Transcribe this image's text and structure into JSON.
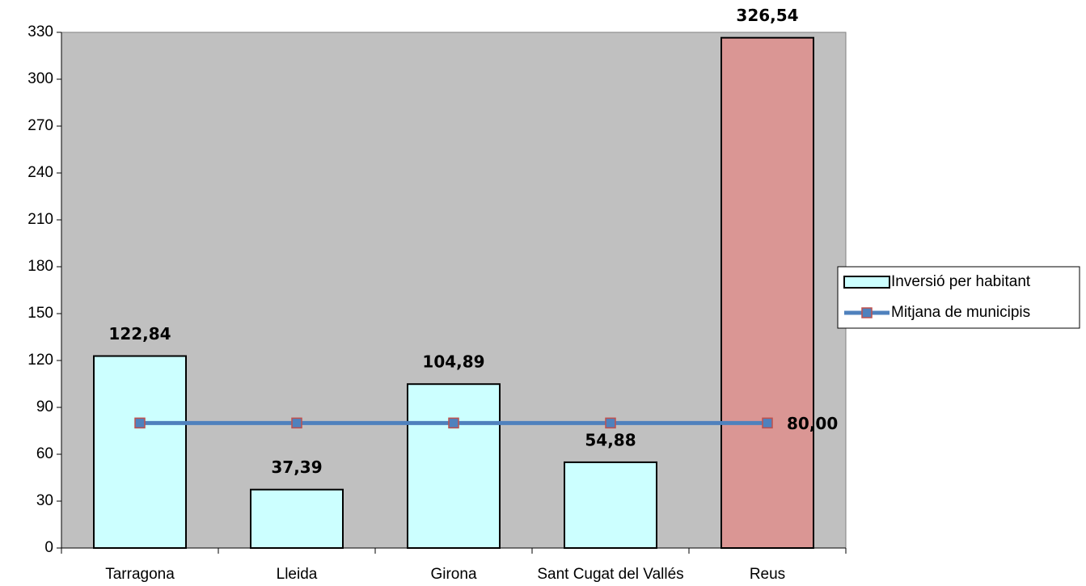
{
  "chart_data": {
    "type": "bar",
    "categories": [
      "Tarragona",
      "Lleida",
      "Girona",
      "Sant Cugat del Vallés",
      "Reus"
    ],
    "series": [
      {
        "name": "Inversió per habitant",
        "type": "bar",
        "color": "#ccffff",
        "colors": [
          "#ccffff",
          "#ccffff",
          "#ccffff",
          "#ccffff",
          "#da9694"
        ],
        "values": [
          122.84,
          37.39,
          104.89,
          54.88,
          326.54
        ],
        "value_labels": [
          "122,84",
          "37,39",
          "104,89",
          "54,88",
          "326,54"
        ]
      },
      {
        "name": "Mitjana de municipis",
        "type": "line",
        "color": "#4f81bd",
        "marker_edge": "#c0504d",
        "values": [
          80,
          80,
          80,
          80,
          80
        ],
        "value_labels": [
          null,
          null,
          null,
          null,
          "80,00"
        ]
      }
    ],
    "ylim": [
      0,
      330
    ],
    "yticks": [
      0,
      30,
      60,
      90,
      120,
      150,
      180,
      210,
      240,
      270,
      300,
      330
    ],
    "plot_background": "#c0c0c0",
    "legend": "right"
  }
}
